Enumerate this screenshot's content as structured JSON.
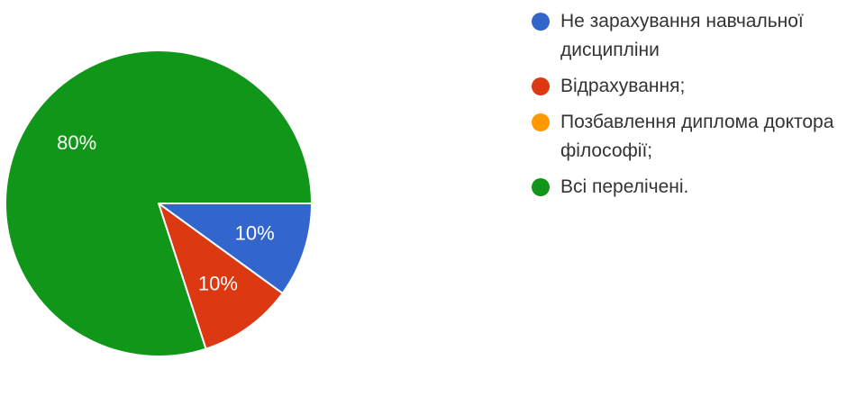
{
  "chart_data": {
    "type": "pie",
    "start_angle_deg": 90,
    "direction": "clockwise",
    "legend_position": "right",
    "slices": [
      {
        "name": "Не зарахування навчальної дисципліни",
        "value": 10,
        "label": "10%",
        "color": "#3366cc"
      },
      {
        "name": "Відрахування;",
        "value": 10,
        "label": "10%",
        "color": "#dc3912"
      },
      {
        "name": "Позбавлення диплома доктора філософії;",
        "value": 0,
        "label": "",
        "color": "#ff9900"
      },
      {
        "name": "Всі перелічені.",
        "value": 80,
        "label": "80%",
        "color": "#109618"
      }
    ]
  }
}
